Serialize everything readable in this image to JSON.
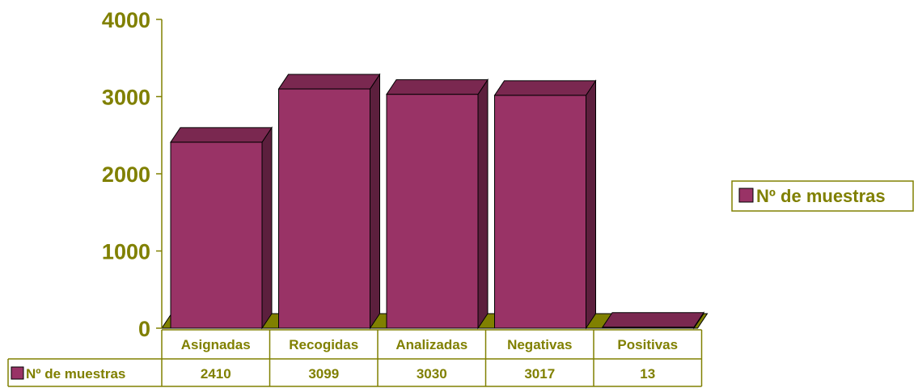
{
  "chart_data": {
    "type": "bar",
    "categories": [
      "Asignadas",
      "Recogidas",
      "Analizadas",
      "Negativas",
      "Positivas"
    ],
    "series": [
      {
        "name": "Nº de muestras",
        "values": [
          2410,
          3099,
          3030,
          3017,
          13
        ]
      }
    ],
    "value_labels": [
      "2410",
      "3099",
      "3030",
      "3017",
      "13"
    ],
    "ylim": [
      0,
      4000
    ],
    "yticks": [
      "0",
      "1000",
      "2000",
      "3000",
      "4000"
    ],
    "legend": {
      "label": "Nº de muestras",
      "position": "right"
    },
    "data_table": true,
    "colors": {
      "bar_front": "#993366",
      "bar_side": "#5c1f3d",
      "bar_top": "#7a2850",
      "floor": "#808000",
      "axis": "#808000",
      "text": "#808000"
    }
  }
}
